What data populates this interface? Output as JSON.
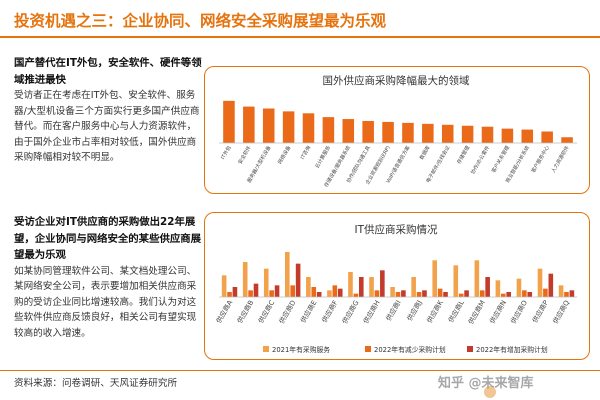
{
  "header": {
    "title": "投资机遇之三：企业协同、网络安全采购展望最为乐观"
  },
  "left": {
    "section1": {
      "heading": "国产替代在IT外包，安全软件、硬件等领域推进最快",
      "body": "受访者正在考虑在IT外包、安全软件、服务器/大型机设备三个方面实行更多国产供应商替代。而在客户服务中心与人力资源软件，由于国外企业市占率相对较低，国外供应商采购降幅相对较不明显。"
    },
    "section2": {
      "heading": "受访企业对IT供应商的采购做出22年展望，企业协同与网络安全的某些供应商展望最为乐观",
      "body": "如某协同管理软件公司、某文档处理公司、某网络安全公司，表示要增加相关供应商采购的受访企业同比增速较高。我们认为对这些软件供应商反馈良好，相关公司有望实现较高的收入增速。"
    }
  },
  "footer": {
    "source": "资料来源：问卷调研、天风证券研究所",
    "watermark": "知乎 @未来智库"
  },
  "colors": {
    "accent": "#e5740f",
    "series1": "#f2a24a",
    "series2": "#eb6a1a",
    "series3": "#c33b2a"
  },
  "chart_data": [
    {
      "type": "bar",
      "title": "国外供应商采购降幅最大的领域",
      "categories": [
        "IT外包",
        "安全软件",
        "服务器/大型机设备",
        "网络设备",
        "IT咨询",
        "云计算服务",
        "存储设备/服务器系统",
        "协作/团队沟通工具",
        "企业资源规划(ERP)",
        "VoIP/语音通信方案",
        "数据库",
        "电子邮件/在线会议",
        "存储管理",
        "协作/办公套件",
        "客户关系管理",
        "商业智能/分析系统",
        "客户服务中心",
        "人力资源软件"
      ],
      "values": [
        22,
        19,
        18,
        16.5,
        15.5,
        13.5,
        12.5,
        11.5,
        11,
        10.5,
        10,
        9.5,
        9,
        8.5,
        7.5,
        7,
        6,
        3
      ],
      "ylim": [
        0,
        24
      ],
      "legend": false,
      "grid": false
    },
    {
      "type": "bar",
      "title": "IT供应商采购情况",
      "categories": [
        "供应商A",
        "供应商B",
        "供应商C",
        "供应商D",
        "供应商E",
        "供应商F",
        "供应商G",
        "供应商H",
        "供应商I",
        "供应商J",
        "供应商K",
        "供应商L",
        "供应商M",
        "供应商N",
        "供应商O",
        "供应商P",
        "供应商Q"
      ],
      "series": [
        {
          "name": "2021年有采购服务",
          "values": [
            13,
            21,
            17,
            27,
            12,
            4,
            15,
            12,
            6,
            12,
            22,
            19,
            22,
            10,
            11,
            17,
            7
          ]
        },
        {
          "name": "2022年有减少采购计划",
          "values": [
            3,
            4,
            4,
            7,
            6,
            7,
            2,
            4,
            3,
            3,
            5,
            2,
            4,
            2,
            4,
            5,
            3
          ]
        },
        {
          "name": "2022年有增加采购计划",
          "values": [
            6,
            8,
            7,
            20,
            3,
            5,
            12,
            16,
            4,
            4,
            3,
            4,
            12,
            3,
            3,
            14,
            4
          ]
        }
      ],
      "ylim": [
        0,
        30
      ],
      "legend": "bottom",
      "grid": false
    }
  ]
}
